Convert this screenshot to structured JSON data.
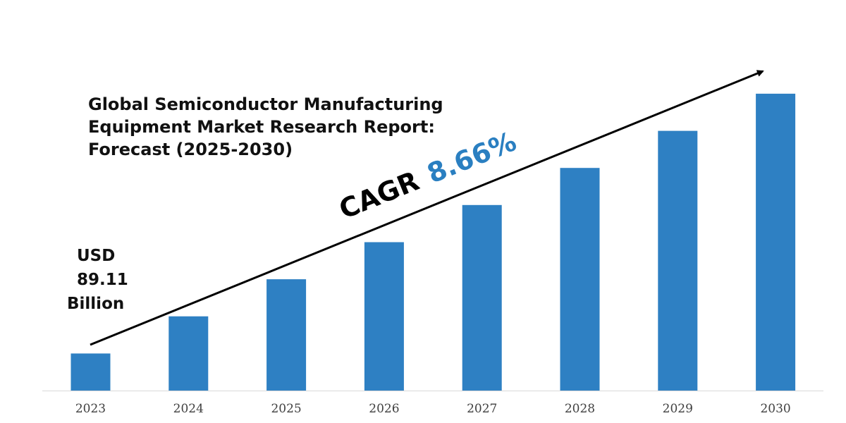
{
  "chart_data": {
    "type": "bar",
    "title": "Global Semiconductor Manufacturing Equipment Market Research Report: Forecast (2025-2030)",
    "title_lines": [
      "Global Semiconductor Manufacturing",
      "Equipment Market Research Report:",
      "Forecast (2025-2030)"
    ],
    "categories": [
      "2023",
      "2024",
      "2025",
      "2026",
      "2027",
      "2028",
      "2029",
      "2030"
    ],
    "values": [
      1,
      2,
      3,
      4,
      5,
      6,
      7,
      8
    ],
    "ylim": [
      0,
      8.55
    ],
    "xlabel": "",
    "ylabel": "",
    "grid": false,
    "bar_color": "#2e80c3",
    "cagr": {
      "prefix": "CAGR",
      "value": "8.66%",
      "value_color": "#2a7fc1"
    },
    "annotation": {
      "lines": [
        "USD",
        "89.11",
        "Billion"
      ]
    }
  }
}
